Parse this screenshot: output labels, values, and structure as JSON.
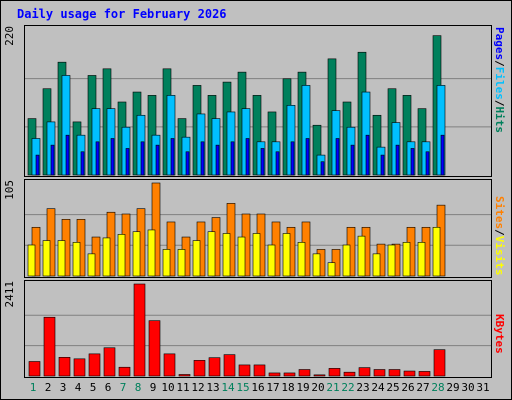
{
  "title": "Daily usage for February 2026",
  "colors": {
    "hits": "#00805c",
    "files": "#00c0ff",
    "pages": "#0000ff",
    "visits": "#ffff00",
    "sites": "#ff8000",
    "kbytes": "#ff0000",
    "title": "#0000ff",
    "weekend_day": "#00805c",
    "day": "#000000",
    "separator_slash": "#000000"
  },
  "legends": {
    "hits": [
      "Pages",
      "Files",
      "Hits"
    ],
    "sites": [
      "Sites",
      "Visits"
    ],
    "kbytes": [
      "KBytes"
    ]
  },
  "chart_data": [
    {
      "type": "bar",
      "panel": "hits-files-pages",
      "y_max_label": "220",
      "ylim": [
        0,
        220
      ],
      "grid": true,
      "categories": [
        "1",
        "2",
        "3",
        "4",
        "5",
        "6",
        "7",
        "8",
        "9",
        "10",
        "11",
        "12",
        "13",
        "14",
        "15",
        "16",
        "17",
        "18",
        "19",
        "20",
        "21",
        "22",
        "23",
        "24",
        "25",
        "26",
        "27",
        "28",
        "29",
        "30",
        "31"
      ],
      "weekend_days": [
        "1",
        "7",
        "8",
        "14",
        "15",
        "21",
        "22",
        "28"
      ],
      "series": [
        {
          "name": "Hits",
          "values": [
            85,
            130,
            170,
            80,
            150,
            160,
            110,
            125,
            120,
            160,
            85,
            135,
            120,
            140,
            155,
            120,
            95,
            145,
            155,
            75,
            175,
            110,
            185,
            90,
            130,
            120,
            100,
            210,
            null,
            null,
            null
          ]
        },
        {
          "name": "Files",
          "values": [
            55,
            80,
            150,
            60,
            100,
            100,
            72,
            90,
            60,
            120,
            57,
            92,
            85,
            95,
            100,
            50,
            50,
            105,
            135,
            30,
            97,
            72,
            125,
            42,
            79,
            50,
            50,
            135,
            null,
            null,
            null
          ]
        },
        {
          "name": "Pages",
          "values": [
            30,
            45,
            60,
            35,
            50,
            55,
            40,
            50,
            45,
            55,
            35,
            50,
            45,
            50,
            55,
            40,
            35,
            50,
            55,
            20,
            55,
            45,
            60,
            30,
            45,
            40,
            35,
            60,
            null,
            null,
            null
          ]
        }
      ]
    },
    {
      "type": "bar",
      "panel": "sites-visits",
      "y_max_label": "105",
      "ylim": [
        0,
        105
      ],
      "grid": true,
      "categories": [
        "1",
        "2",
        "3",
        "4",
        "5",
        "6",
        "7",
        "8",
        "9",
        "10",
        "11",
        "12",
        "13",
        "14",
        "15",
        "16",
        "17",
        "18",
        "19",
        "20",
        "21",
        "22",
        "23",
        "24",
        "25",
        "26",
        "27",
        "28",
        "29",
        "30",
        "31"
      ],
      "series": [
        {
          "name": "Sites",
          "values": [
            55,
            76,
            64,
            64,
            44,
            72,
            70,
            76,
            105,
            61,
            44,
            61,
            66,
            82,
            70,
            70,
            61,
            55,
            61,
            30,
            30,
            55,
            55,
            36,
            36,
            55,
            55,
            80,
            null,
            null,
            null
          ]
        },
        {
          "name": "Visits",
          "values": [
            35,
            40,
            40,
            38,
            25,
            43,
            47,
            50,
            52,
            30,
            30,
            40,
            50,
            48,
            44,
            48,
            35,
            48,
            38,
            25,
            15,
            35,
            45,
            25,
            35,
            38,
            38,
            55,
            null,
            null,
            null
          ]
        }
      ]
    },
    {
      "type": "bar",
      "panel": "kbytes",
      "y_max_label": "2411",
      "ylim": [
        0,
        2411
      ],
      "grid": true,
      "categories": [
        "1",
        "2",
        "3",
        "4",
        "5",
        "6",
        "7",
        "8",
        "9",
        "10",
        "11",
        "12",
        "13",
        "14",
        "15",
        "16",
        "17",
        "18",
        "19",
        "20",
        "21",
        "22",
        "23",
        "24",
        "25",
        "26",
        "27",
        "28",
        "29",
        "30",
        "31"
      ],
      "series": [
        {
          "name": "KBytes",
          "values": [
            380,
            1540,
            490,
            450,
            580,
            740,
            230,
            2411,
            1450,
            580,
            40,
            410,
            480,
            560,
            290,
            290,
            80,
            80,
            170,
            30,
            200,
            100,
            220,
            170,
            170,
            130,
            120,
            690,
            null,
            null,
            null
          ]
        }
      ]
    }
  ]
}
